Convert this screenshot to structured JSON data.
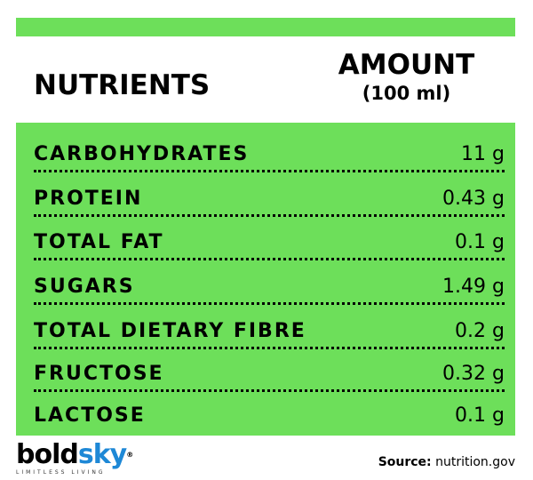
{
  "header": {
    "nutrients_label": "NUTRIENTS",
    "amount_label": "AMOUNT",
    "amount_unit": "(100 ml)"
  },
  "rows": [
    {
      "name": "CARBOHYDRATES",
      "value": "11 g"
    },
    {
      "name": "PROTEIN",
      "value": "0.43 g"
    },
    {
      "name": "TOTAL FAT",
      "value": "0.1 g"
    },
    {
      "name": "SUGARS",
      "value": "1.49 g"
    },
    {
      "name": "TOTAL DIETARY FIBRE",
      "value": "0.2 g"
    },
    {
      "name": "FRUCTOSE",
      "value": "0.32 g"
    },
    {
      "name": "LACTOSE",
      "value": "0.1 g"
    }
  ],
  "logo": {
    "part1": "bold",
    "part2": "sky",
    "registered": "®",
    "tagline": "LIMITLESS LIVING"
  },
  "source": {
    "label": "Source:",
    "value": "nutrition.gov"
  },
  "colors": {
    "accent_green": "#6ddf5a",
    "logo_blue": "#1e88d6"
  }
}
